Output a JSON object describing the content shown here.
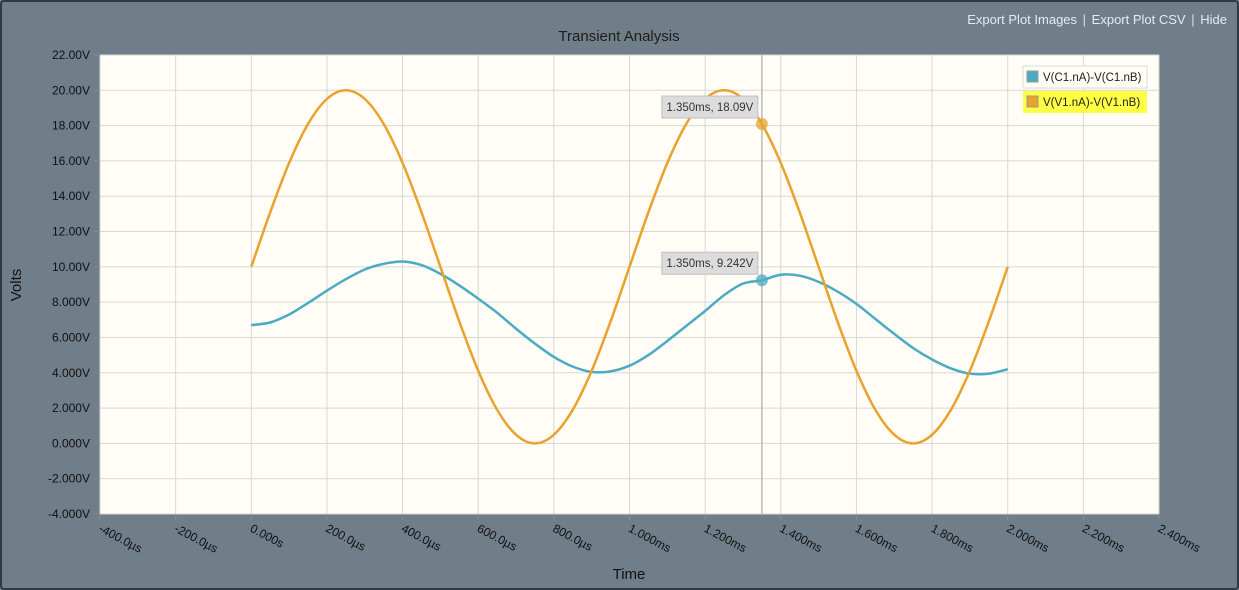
{
  "toolbar": {
    "export_images": "Export Plot Images",
    "export_csv": "Export Plot CSV",
    "hide": "Hide",
    "separator": "|"
  },
  "colors": {
    "frame_bg": "#6f7e89",
    "plot_bg": "#fffdf5",
    "series_c1": "#4aabc3",
    "series_v1": "#e9a22c",
    "legend_highlight": "#ffff44"
  },
  "chart_data": {
    "type": "line",
    "title": "Transient Analysis",
    "xlabel": "Time",
    "ylabel": "Volts",
    "xlim": [
      -0.0004,
      0.0024
    ],
    "ylim": [
      -4,
      22
    ],
    "x_ticks": [
      -0.0004,
      -0.0002,
      0,
      0.0002,
      0.0004,
      0.0006,
      0.0008,
      0.001,
      0.0012,
      0.0014,
      0.0016,
      0.0018,
      0.002,
      0.0022,
      0.0024
    ],
    "x_tick_labels": [
      "-400.0µs",
      "-200.0µs",
      "0.000s",
      "200.0µs",
      "400.0µs",
      "600.0µs",
      "800.0µs",
      "1.000ms",
      "1.200ms",
      "1.400ms",
      "1.600ms",
      "1.800ms",
      "2.000ms",
      "2.200ms",
      "2.400ms"
    ],
    "y_ticks": [
      22,
      20,
      18,
      16,
      14,
      12,
      10,
      8,
      6,
      4,
      2,
      0,
      -2,
      -4
    ],
    "y_tick_labels": [
      "22.00V",
      "20.00V",
      "18.00V",
      "16.00V",
      "14.00V",
      "12.00V",
      "10.00V",
      "8.000V",
      "6.000V",
      "4.000V",
      "2.000V",
      "0.000V",
      "-2.000V",
      "-4.000V"
    ],
    "grid": true,
    "legend_position": "top-right",
    "series": [
      {
        "name": "V(C1.nA)-V(C1.nB)",
        "color": "#4aabc3",
        "x": [
          0,
          5e-05,
          0.0001,
          0.00015,
          0.0002,
          0.00025,
          0.0003,
          0.00035,
          0.0004,
          0.00045,
          0.0005,
          0.00055,
          0.0006,
          0.00065,
          0.0007,
          0.00075,
          0.0008,
          0.00085,
          0.0009,
          0.00095,
          0.001,
          0.00105,
          0.0011,
          0.00115,
          0.0012,
          0.00125,
          0.0013,
          0.00135,
          0.0014,
          0.00145,
          0.0015,
          0.00155,
          0.0016,
          0.00165,
          0.0017,
          0.00175,
          0.0018,
          0.00185,
          0.0019,
          0.00195,
          0.002
        ],
        "values": [
          6.7,
          6.85,
          7.3,
          7.95,
          8.65,
          9.3,
          9.85,
          10.17,
          10.3,
          10.1,
          9.6,
          8.95,
          8.2,
          7.4,
          6.5,
          5.65,
          4.9,
          4.35,
          4.05,
          4.08,
          4.4,
          5.0,
          5.8,
          6.65,
          7.5,
          8.4,
          9.05,
          9.24,
          9.55,
          9.5,
          9.15,
          8.6,
          7.9,
          7.05,
          6.2,
          5.4,
          4.75,
          4.25,
          3.95,
          3.95,
          4.2
        ]
      },
      {
        "name": "V(V1.nA)-V(V1.nB)",
        "color": "#e9a22c",
        "x": [
          0,
          5e-05,
          0.0001,
          0.00015,
          0.0002,
          0.00025,
          0.0003,
          0.00035,
          0.0004,
          0.00045,
          0.0005,
          0.00055,
          0.0006,
          0.00065,
          0.0007,
          0.00075,
          0.0008,
          0.00085,
          0.0009,
          0.00095,
          0.001,
          0.00105,
          0.0011,
          0.00115,
          0.0012,
          0.00125,
          0.0013,
          0.00135,
          0.0014,
          0.00145,
          0.0015,
          0.00155,
          0.0016,
          0.00165,
          0.0017,
          0.00175,
          0.0018,
          0.00185,
          0.0019,
          0.00195,
          0.002
        ],
        "values": [
          10,
          13.09,
          15.88,
          18.09,
          19.51,
          20,
          19.51,
          18.09,
          15.88,
          13.09,
          10,
          6.91,
          4.12,
          1.91,
          0.49,
          0,
          0.49,
          1.91,
          4.12,
          6.91,
          10,
          13.09,
          15.88,
          18.09,
          19.51,
          20,
          19.51,
          18.09,
          15.88,
          13.09,
          10,
          6.91,
          4.12,
          1.91,
          0.49,
          0,
          0.49,
          1.91,
          4.12,
          6.91,
          10
        ]
      }
    ],
    "cursor": {
      "x": 0.00135,
      "readouts": [
        {
          "series": 1,
          "y": 18.09,
          "label": "1.350ms, 18.09V"
        },
        {
          "series": 0,
          "y": 9.242,
          "label": "1.350ms, 9.242V"
        }
      ]
    },
    "legend_highlighted_series": 1
  }
}
